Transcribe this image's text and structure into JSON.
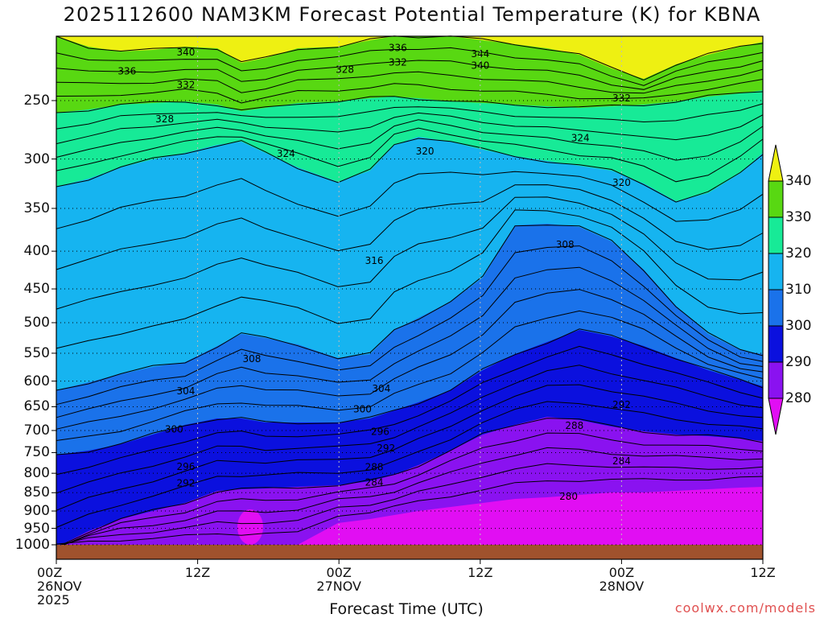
{
  "title": "2025112600 NAM3KM Forecast Potential Temperature (K) for KBNA",
  "watermark": "coolwx.com/models",
  "colors": {
    "lt280": "#e10ef3",
    "b280_290": "#8a12f0",
    "b290_300": "#0b10de",
    "b300_310": "#1a72ea",
    "b310_320": "#16b4f0",
    "b320_330": "#17ea97",
    "b330_340": "#58d812",
    "gt340": "#eef012",
    "ground": "#a0522d"
  },
  "chart_data": {
    "type": "heatmap",
    "title": "2025112600 NAM3KM Forecast Potential Temperature (K) for KBNA",
    "xlabel": "Forecast Time (UTC)",
    "ylabel": "",
    "x_ticks": [
      {
        "line1": "00Z",
        "line2": "26NOV",
        "line3": "2025"
      },
      {
        "line1": "12Z",
        "line2": "",
        "line3": ""
      },
      {
        "line1": "00Z",
        "line2": "27NOV",
        "line3": ""
      },
      {
        "line1": "12Z",
        "line2": "",
        "line3": ""
      },
      {
        "line1": "00Z",
        "line2": "28NOV",
        "line3": ""
      },
      {
        "line1": "12Z",
        "line2": "",
        "line3": ""
      }
    ],
    "x_hours": [
      0,
      12,
      24,
      36,
      48,
      60
    ],
    "y_ticks": [
      "250",
      "300",
      "350",
      "400",
      "450",
      "500",
      "550",
      "600",
      "650",
      "700",
      "750",
      "800",
      "850",
      "900",
      "950",
      "1000"
    ],
    "y_levels": [
      250,
      300,
      350,
      400,
      450,
      500,
      550,
      600,
      650,
      700,
      750,
      800,
      850,
      900,
      950,
      1000
    ],
    "y_range_hpa": [
      200,
      1000
    ],
    "colorbar": {
      "labels": [
        "340",
        "330",
        "320",
        "310",
        "300",
        "290",
        "280"
      ],
      "levels": [
        280,
        290,
        300,
        310,
        320,
        330,
        340
      ]
    },
    "contour_labels": [
      {
        "text": "340",
        "t": 11.0,
        "p": 215
      },
      {
        "text": "336",
        "t": 6.0,
        "p": 228
      },
      {
        "text": "332",
        "t": 11.0,
        "p": 238
      },
      {
        "text": "328",
        "t": 9.2,
        "p": 265
      },
      {
        "text": "324",
        "t": 19.5,
        "p": 295
      },
      {
        "text": "336",
        "t": 29.0,
        "p": 212
      },
      {
        "text": "332",
        "t": 29.0,
        "p": 222
      },
      {
        "text": "328",
        "t": 24.5,
        "p": 227
      },
      {
        "text": "344",
        "t": 36.0,
        "p": 216
      },
      {
        "text": "340",
        "t": 36.0,
        "p": 224
      },
      {
        "text": "320",
        "t": 31.3,
        "p": 293
      },
      {
        "text": "332",
        "t": 48.0,
        "p": 248
      },
      {
        "text": "324",
        "t": 44.5,
        "p": 281
      },
      {
        "text": "320",
        "t": 48.0,
        "p": 323
      },
      {
        "text": "316",
        "t": 27.0,
        "p": 412
      },
      {
        "text": "308",
        "t": 43.2,
        "p": 392
      },
      {
        "text": "308",
        "t": 16.6,
        "p": 560
      },
      {
        "text": "304",
        "t": 11.0,
        "p": 619
      },
      {
        "text": "304",
        "t": 27.6,
        "p": 614
      },
      {
        "text": "300",
        "t": 26.0,
        "p": 655
      },
      {
        "text": "300",
        "t": 10.0,
        "p": 697
      },
      {
        "text": "296",
        "t": 27.5,
        "p": 703
      },
      {
        "text": "292",
        "t": 28.0,
        "p": 740
      },
      {
        "text": "296",
        "t": 11.0,
        "p": 784
      },
      {
        "text": "292",
        "t": 11.0,
        "p": 825
      },
      {
        "text": "288",
        "t": 27.0,
        "p": 785
      },
      {
        "text": "284",
        "t": 27.0,
        "p": 823
      },
      {
        "text": "292",
        "t": 48.0,
        "p": 646
      },
      {
        "text": "288",
        "t": 44.0,
        "p": 690
      },
      {
        "text": "284",
        "t": 48.0,
        "p": 770
      },
      {
        "text": "280",
        "t": 43.5,
        "p": 860
      }
    ]
  }
}
